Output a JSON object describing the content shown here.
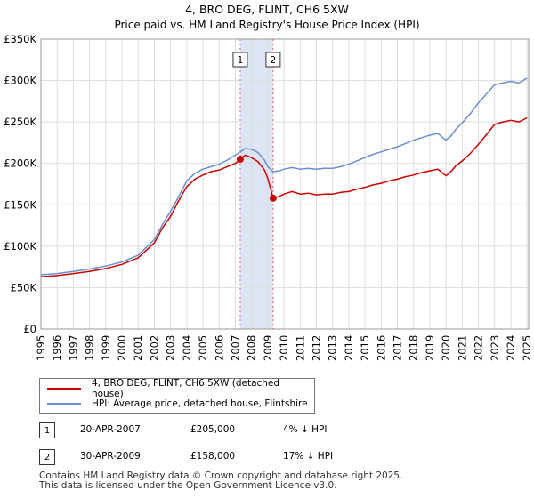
{
  "chart_data": {
    "type": "line",
    "title": "4, BRO DEG, FLINT, CH6 5XW",
    "subtitle": "Price paid vs. HM Land Registry's House Price Index (HPI)",
    "xlabel": "",
    "ylabel": "",
    "xlim": [
      1995,
      2025.1
    ],
    "ylim": [
      0,
      350000
    ],
    "x_ticks": [
      1995,
      1996,
      1997,
      1998,
      1999,
      2000,
      2001,
      2002,
      2003,
      2004,
      2005,
      2006,
      2007,
      2008,
      2009,
      2010,
      2011,
      2012,
      2013,
      2014,
      2015,
      2016,
      2017,
      2018,
      2019,
      2020,
      2021,
      2022,
      2023,
      2024,
      2025
    ],
    "y_ticks": [
      {
        "value": 0,
        "label": "£0"
      },
      {
        "value": 50000,
        "label": "£50K"
      },
      {
        "value": 100000,
        "label": "£100K"
      },
      {
        "value": 150000,
        "label": "£150K"
      },
      {
        "value": 200000,
        "label": "£200K"
      },
      {
        "value": 250000,
        "label": "£250K"
      },
      {
        "value": 300000,
        "label": "£300K"
      },
      {
        "value": 350000,
        "label": "£350K"
      }
    ],
    "grid": true,
    "shaded_region": [
      2007.3,
      2009.33
    ],
    "series": [
      {
        "name": "4, BRO DEG, FLINT, CH6 5XW (detached house)",
        "color": "#cc0000",
        "points": [
          [
            1995.0,
            63000
          ],
          [
            1996.0,
            64500
          ],
          [
            1997.0,
            67000
          ],
          [
            1998.0,
            69500
          ],
          [
            1999.0,
            73000
          ],
          [
            2000.0,
            78000
          ],
          [
            2001.0,
            86000
          ],
          [
            2002.0,
            104000
          ],
          [
            2002.5,
            122000
          ],
          [
            2003.0,
            136000
          ],
          [
            2003.5,
            155000
          ],
          [
            2004.0,
            172000
          ],
          [
            2004.5,
            181000
          ],
          [
            2005.0,
            186000
          ],
          [
            2005.5,
            190000
          ],
          [
            2006.0,
            192000
          ],
          [
            2006.5,
            196000
          ],
          [
            2007.0,
            200000
          ],
          [
            2007.3,
            205000
          ],
          [
            2007.6,
            210000
          ],
          [
            2008.0,
            207000
          ],
          [
            2008.4,
            202000
          ],
          [
            2008.8,
            192000
          ],
          [
            2009.0,
            182000
          ],
          [
            2009.33,
            158000
          ],
          [
            2009.7,
            160000
          ],
          [
            2010.0,
            163000
          ],
          [
            2010.5,
            166000
          ],
          [
            2011.0,
            163000
          ],
          [
            2011.5,
            164000
          ],
          [
            2012.0,
            162000
          ],
          [
            2012.5,
            163000
          ],
          [
            2013.0,
            163000
          ],
          [
            2013.5,
            165000
          ],
          [
            2014.0,
            166000
          ],
          [
            2014.5,
            169000
          ],
          [
            2015.0,
            171000
          ],
          [
            2015.5,
            174000
          ],
          [
            2016.0,
            176000
          ],
          [
            2016.5,
            179000
          ],
          [
            2017.0,
            181000
          ],
          [
            2017.5,
            184000
          ],
          [
            2018.0,
            186000
          ],
          [
            2018.5,
            189000
          ],
          [
            2019.0,
            191000
          ],
          [
            2019.5,
            193000
          ],
          [
            2020.0,
            185000
          ],
          [
            2020.3,
            190000
          ],
          [
            2020.6,
            197000
          ],
          [
            2021.0,
            203000
          ],
          [
            2021.5,
            212000
          ],
          [
            2022.0,
            223000
          ],
          [
            2022.5,
            235000
          ],
          [
            2023.0,
            247000
          ],
          [
            2023.5,
            250000
          ],
          [
            2024.0,
            252000
          ],
          [
            2024.5,
            250000
          ],
          [
            2025.0,
            255000
          ]
        ]
      },
      {
        "name": "HPI: Average price, detached house, Flintshire",
        "color": "#6a8fcf",
        "points": [
          [
            1995.0,
            65500
          ],
          [
            1996.0,
            67000
          ],
          [
            1997.0,
            69500
          ],
          [
            1998.0,
            72500
          ],
          [
            1999.0,
            76000
          ],
          [
            2000.0,
            81000
          ],
          [
            2001.0,
            89000
          ],
          [
            2002.0,
            108000
          ],
          [
            2002.5,
            126000
          ],
          [
            2003.0,
            142000
          ],
          [
            2003.5,
            160000
          ],
          [
            2004.0,
            179000
          ],
          [
            2004.5,
            188000
          ],
          [
            2005.0,
            193000
          ],
          [
            2005.5,
            196000
          ],
          [
            2006.0,
            199000
          ],
          [
            2006.5,
            204000
          ],
          [
            2007.0,
            210000
          ],
          [
            2007.3,
            213500
          ],
          [
            2007.6,
            218000
          ],
          [
            2008.0,
            217000
          ],
          [
            2008.4,
            213000
          ],
          [
            2008.8,
            204000
          ],
          [
            2009.0,
            196000
          ],
          [
            2009.33,
            190000
          ],
          [
            2009.7,
            191000
          ],
          [
            2010.0,
            193000
          ],
          [
            2010.5,
            195000
          ],
          [
            2011.0,
            193000
          ],
          [
            2011.5,
            194000
          ],
          [
            2012.0,
            193000
          ],
          [
            2012.5,
            194000
          ],
          [
            2013.0,
            194000
          ],
          [
            2013.5,
            196000
          ],
          [
            2014.0,
            199000
          ],
          [
            2014.5,
            203000
          ],
          [
            2015.0,
            207000
          ],
          [
            2015.5,
            211000
          ],
          [
            2016.0,
            214000
          ],
          [
            2016.5,
            217000
          ],
          [
            2017.0,
            220000
          ],
          [
            2017.5,
            224000
          ],
          [
            2018.0,
            228000
          ],
          [
            2018.5,
            231000
          ],
          [
            2019.0,
            234000
          ],
          [
            2019.5,
            236000
          ],
          [
            2020.0,
            228000
          ],
          [
            2020.3,
            233000
          ],
          [
            2020.6,
            241000
          ],
          [
            2021.0,
            249000
          ],
          [
            2021.5,
            260000
          ],
          [
            2022.0,
            273000
          ],
          [
            2022.5,
            284000
          ],
          [
            2023.0,
            295000
          ],
          [
            2023.5,
            297000
          ],
          [
            2024.0,
            299000
          ],
          [
            2024.5,
            297000
          ],
          [
            2025.0,
            303000
          ]
        ]
      }
    ],
    "sales": [
      {
        "label": "1",
        "x": 2007.3,
        "y": 205000
      },
      {
        "label": "2",
        "x": 2009.33,
        "y": 158000
      }
    ]
  },
  "legend": {
    "items": [
      {
        "label": "4, BRO DEG, FLINT, CH6 5XW (detached house)",
        "color": "#cc0000"
      },
      {
        "label": "HPI: Average price, detached house, Flintshire",
        "color": "#6a8fcf"
      }
    ]
  },
  "transactions": [
    {
      "num": "1",
      "date": "20-APR-2007",
      "price": "£205,000",
      "hpi": "4% ↓ HPI"
    },
    {
      "num": "2",
      "date": "30-APR-2009",
      "price": "£158,000",
      "hpi": "17% ↓ HPI"
    }
  ],
  "footer": {
    "line1": "Contains HM Land Registry data © Crown copyright and database right 2025.",
    "line2": "This data is licensed under the Open Government Licence v3.0."
  }
}
